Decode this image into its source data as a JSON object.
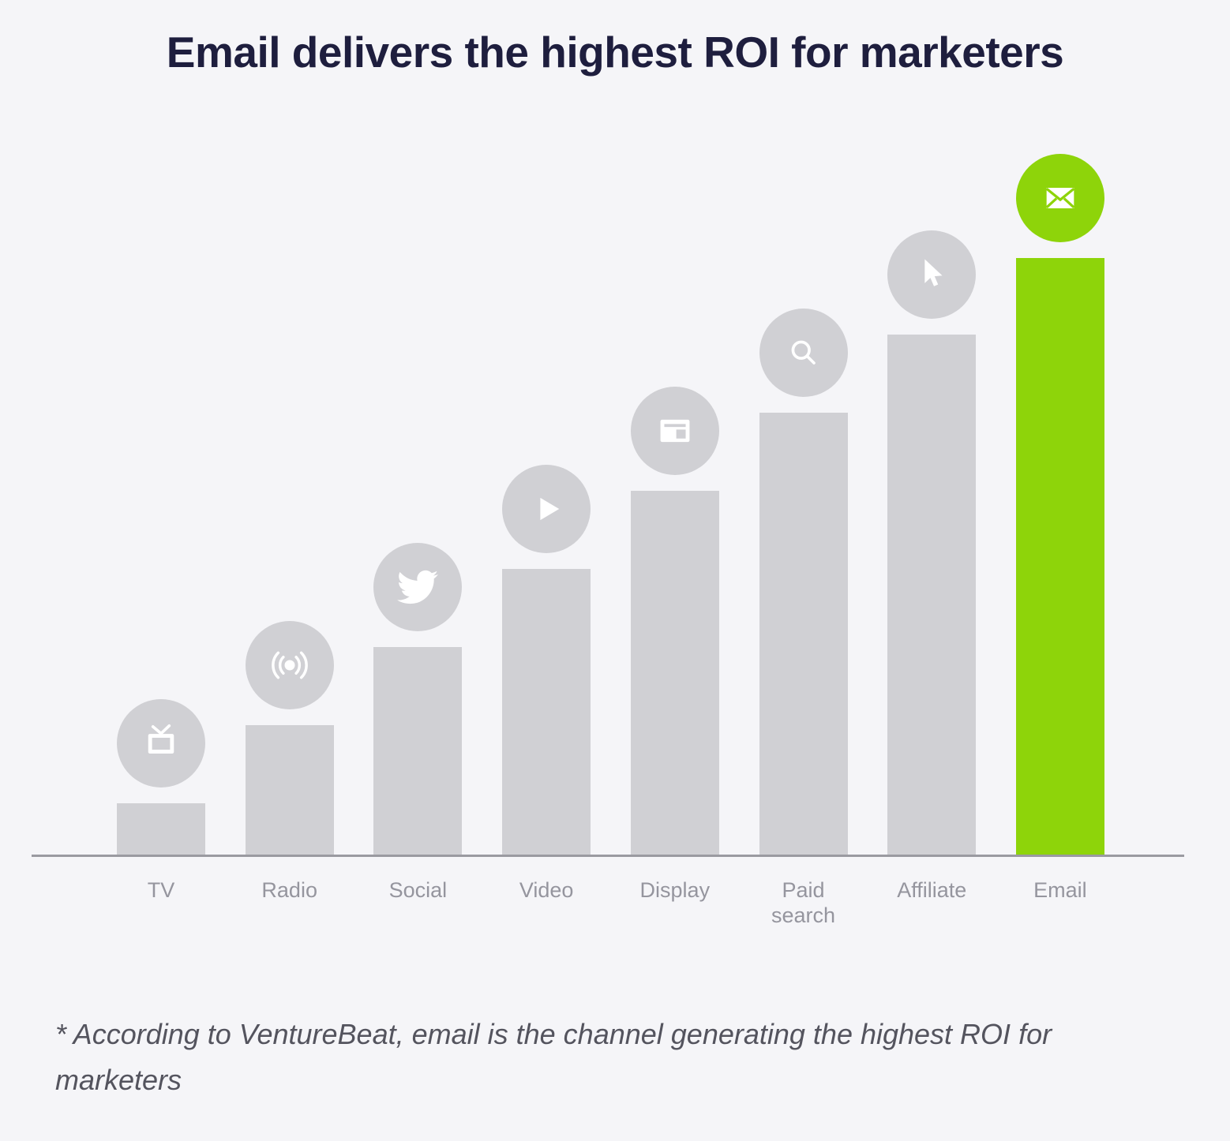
{
  "title": "Email delivers the highest ROI for marketers",
  "footnote": "* According to VentureBeat, email is the channel generating the highest ROI for marketers",
  "colors": {
    "background": "#f5f5f8",
    "bar_gray": "#d0d0d4",
    "accent_green": "#8ed40a",
    "title_text": "#1e1e3e",
    "label_text": "#95959e",
    "footnote_text": "#54545e",
    "axis_line": "#9a9aa1",
    "icon_glyph": "#ffffff"
  },
  "chart_data": {
    "type": "bar",
    "orientation": "vertical",
    "title": "Email delivers the highest ROI for marketers",
    "xlabel": "",
    "ylabel": "",
    "grid": false,
    "legend": false,
    "value_axis_labeled": false,
    "categories": [
      "TV",
      "Radio",
      "Social",
      "Video",
      "Display",
      "Paid search",
      "Affiliate",
      "Email"
    ],
    "values": [
      0.086,
      0.217,
      0.348,
      0.479,
      0.61,
      0.741,
      0.872,
      1.0
    ],
    "values_note": "No numeric axis shown; values are bar heights relative to tallest bar (Email). Bars increase in equal linear steps.",
    "icons": [
      "tv-icon",
      "radio-broadcast-icon",
      "twitter-bird-icon",
      "play-icon",
      "display-ad-icon",
      "search-icon",
      "cursor-arrow-icon",
      "envelope-icon"
    ],
    "highlight_category": "Email",
    "annotation": "Each bar has a circular icon badge floating above it; the Email bar and badge are green, all others gray."
  }
}
